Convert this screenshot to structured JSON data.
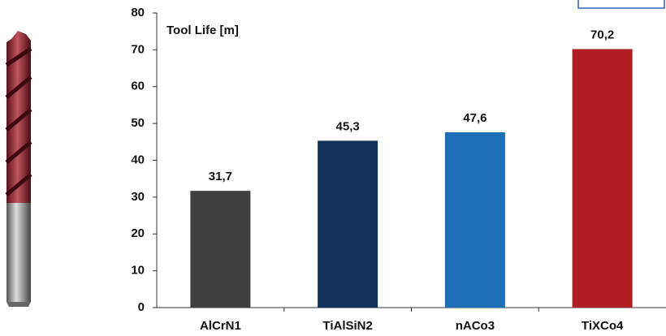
{
  "chart_data": {
    "type": "bar",
    "y_label": "Tool Life [m]",
    "categories": [
      "AlCrN1",
      "TiAlSiN2",
      "nACo3",
      "TiXCo4"
    ],
    "values": [
      31.7,
      45.3,
      47.6,
      70.2
    ],
    "value_labels": [
      "31,7",
      "45,3",
      "47,6",
      "70,2"
    ],
    "colors": [
      "#404040",
      "#13325b",
      "#1e6fb9",
      "#b01e24"
    ],
    "ylim": [
      0,
      80
    ],
    "yticks": [
      0,
      10,
      20,
      30,
      40,
      50,
      60,
      70,
      80
    ],
    "grid": false
  }
}
